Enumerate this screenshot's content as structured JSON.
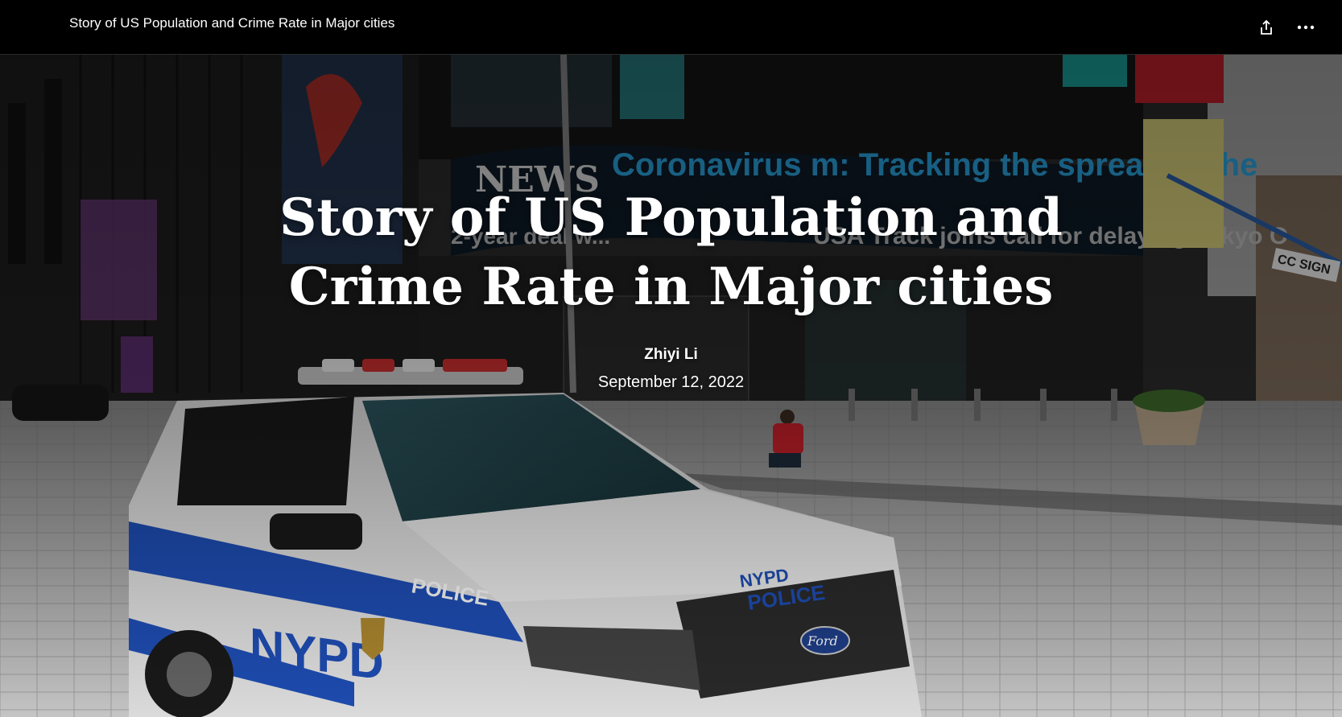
{
  "header": {
    "title": "Story of US Population and Crime Rate in Major cities",
    "share_icon": "share-icon",
    "more_icon": "more-options-icon"
  },
  "hero": {
    "title": "Story of US Population and Crime Rate in Major cities",
    "author": "Zhiyi Li",
    "date": "September 12, 2022",
    "background_image": "nypd-police-car-times-square-photo",
    "signage": {
      "news": "NEWS",
      "ticker_top": "Coronavirus m: Tracking the spread in the",
      "ticker_bottom": "2-year deal w...   USA Track joins call for delaying Tokyo O",
      "car_door": "NYPD",
      "car_side": "POLICE",
      "car_hood_1": "NYPD",
      "car_hood_2": "POLICE",
      "car_brand": "Ford",
      "street_sign": "CC SIGN"
    }
  },
  "colors": {
    "header_bg": "#000000",
    "header_text": "#ffffff",
    "nypd_blue": "#1f4fb8",
    "ticker_blue": "#2aa4e0"
  }
}
